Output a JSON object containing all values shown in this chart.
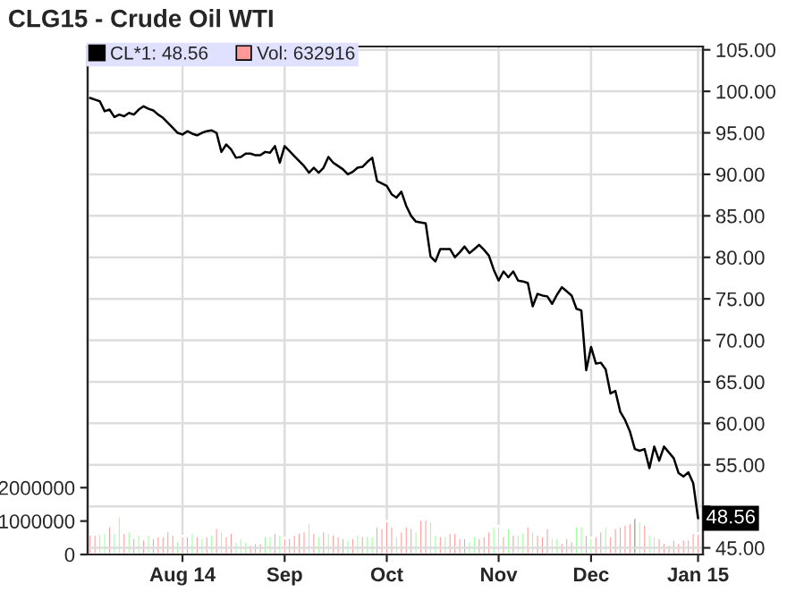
{
  "chart_data": {
    "type": "line",
    "title": "CLG15 - Crude Oil WTI",
    "categories": [
      null,
      null,
      null,
      null,
      null,
      null,
      null,
      null,
      null,
      null,
      null,
      null,
      null,
      null,
      null,
      null,
      null,
      null,
      null,
      "Aug 14",
      null,
      null,
      null,
      null,
      null,
      null,
      null,
      null,
      null,
      null,
      null,
      null,
      null,
      null,
      null,
      null,
      null,
      null,
      null,
      null,
      "Sep",
      null,
      null,
      null,
      null,
      null,
      null,
      null,
      null,
      null,
      null,
      null,
      null,
      null,
      null,
      null,
      null,
      null,
      null,
      null,
      null,
      "Oct",
      null,
      null,
      null,
      null,
      null,
      null,
      null,
      null,
      null,
      null,
      null,
      null,
      null,
      null,
      null,
      null,
      null,
      null,
      null,
      null,
      null,
      null,
      "Nov",
      null,
      null,
      null,
      null,
      null,
      null,
      null,
      null,
      null,
      null,
      null,
      null,
      null,
      null,
      null,
      null,
      null,
      null,
      "Dec",
      null,
      null,
      null,
      null,
      null,
      null,
      null,
      null,
      null,
      null,
      null,
      null,
      null,
      null,
      null,
      null,
      null,
      null,
      null,
      null,
      null,
      "Jan 15"
    ],
    "series": [
      {
        "name": "Vol: 632916",
        "type": "bar",
        "color": "#ff9999",
        "values": [
          600000,
          600000,
          620000,
          650000,
          850000,
          650000,
          1150000,
          650000,
          700000,
          500000,
          600000,
          450000,
          600000,
          500000,
          550000,
          550000,
          700000,
          600000,
          400000,
          550000,
          550000,
          650000,
          550000,
          500000,
          550000,
          600000,
          800000,
          700000,
          550000,
          650000,
          400000,
          500000,
          400000,
          300000,
          350000,
          350000,
          550000,
          550000,
          650000,
          600000,
          500000,
          500000,
          600000,
          650000,
          700000,
          950000,
          650000,
          550000,
          700000,
          650000,
          600000,
          550000,
          500000,
          450000,
          500000,
          600000,
          550000,
          550000,
          550000,
          850000,
          800000,
          1000000,
          850000,
          550000,
          700000,
          850000,
          800000,
          700000,
          1050000,
          1050000,
          1000000,
          600000,
          550000,
          550000,
          650000,
          650000,
          500000,
          500000,
          400000,
          550000,
          500000,
          550000,
          700000,
          850000,
          850000,
          550000,
          800000,
          600000,
          600000,
          650000,
          850000,
          700000,
          600000,
          550000,
          800000,
          500000,
          500000,
          350000,
          500000,
          400000,
          850000,
          850000,
          600000,
          500000,
          550000,
          700000,
          850000,
          550000,
          800000,
          850000,
          900000,
          950000,
          1100000,
          1000000,
          900000,
          600000,
          550000,
          500000,
          350000,
          300000,
          450000,
          350000,
          450000,
          450000,
          650000,
          632916
        ],
        "colors": [
          "#ff9999",
          "#ff9999",
          "#99ff99",
          "#99ff99",
          "#ff9999",
          "#99ff99",
          "#99ff99",
          "#ff9999",
          "#99ff99",
          "#ff9999",
          "#99ff99",
          "#ff9999",
          "#99ff99",
          "#ff9999",
          "#ff9999",
          "#ff9999",
          "#ff9999",
          "#ff9999",
          "#99ff99",
          "#ff9999",
          "#ff9999",
          "#99ff99",
          "#ff9999",
          "#99ff99",
          "#ff9999",
          "#99ff99",
          "#ff9999",
          "#99ff99",
          "#ff9999",
          "#ff9999",
          "#99ff99",
          "#99ff99",
          "#99ff99",
          "#ff9999",
          "#ff9999",
          "#ff9999",
          "#99ff99",
          "#99ff99",
          "#ff9999",
          "#99ff99",
          "#ff9999",
          "#ff9999",
          "#ff9999",
          "#ff9999",
          "#ff9999",
          "#99ff99",
          "#ff9999",
          "#99ff99",
          "#ff9999",
          "#99ff99",
          "#ff9999",
          "#ff9999",
          "#ff9999",
          "#99ff99",
          "#ff9999",
          "#99ff99",
          "#ff9999",
          "#99ff99",
          "#99ff99",
          "#ff9999",
          "#ff9999",
          "#ff9999",
          "#ff9999",
          "#99ff99",
          "#ff9999",
          "#ff9999",
          "#ff9999",
          "#99ff99",
          "#ff9999",
          "#ff9999",
          "#99ff99",
          "#99ff99",
          "#ff9999",
          "#99ff99",
          "#ff9999",
          "#ff9999",
          "#ff9999",
          "#ff9999",
          "#99ff99",
          "#99ff99",
          "#ff9999",
          "#ff9999",
          "#ff9999",
          "#99ff99",
          "#99ff99",
          "#ff9999",
          "#99ff99",
          "#ff9999",
          "#99ff99",
          "#99ff99",
          "#ff9999",
          "#99ff99",
          "#ff9999",
          "#ff9999",
          "#ff9999",
          "#99ff99",
          "#99ff99",
          "#ff9999",
          "#ff9999",
          "#ff9999",
          "#99ff99",
          "#99ff99",
          "#ff9999",
          "#99ff99",
          "#ff9999",
          "#ff9999",
          "#99ff99",
          "#ff9999",
          "#ff9999",
          "#ff9999",
          "#ff9999",
          "#ff9999",
          "#808080",
          "#99ff99",
          "#ff9999",
          "#99ff99",
          "#99ff99",
          "#ff9999",
          "#ff9999",
          "#ff9999",
          "#ff9999",
          "#ff9999",
          "#ff9999",
          "#ff9999",
          "#ff9999",
          "#ff9999"
        ]
      },
      {
        "name": "CL*1: 48.56",
        "axis": "y2",
        "color": "#000000",
        "values": [
          99.2,
          99.0,
          98.8,
          97.6,
          97.8,
          96.9,
          97.2,
          97.0,
          97.4,
          97.2,
          97.8,
          98.2,
          97.9,
          97.7,
          97.2,
          96.8,
          96.2,
          95.6,
          95.0,
          94.8,
          95.2,
          94.9,
          94.7,
          95.0,
          95.2,
          95.3,
          95.0,
          92.7,
          93.6,
          93.0,
          92.0,
          92.1,
          92.5,
          92.5,
          92.3,
          92.3,
          92.7,
          92.6,
          93.4,
          91.4,
          93.4,
          92.8,
          92.2,
          91.6,
          91.0,
          90.2,
          90.8,
          90.2,
          90.8,
          92.1,
          91.4,
          91.0,
          90.6,
          90.0,
          90.3,
          90.8,
          90.9,
          91.5,
          92.0,
          89.2,
          88.9,
          88.6,
          87.6,
          87.2,
          87.9,
          86.2,
          85.0,
          84.3,
          84.2,
          84.1,
          80.1,
          79.5,
          81.0,
          81.0,
          81.0,
          80.0,
          80.6,
          81.3,
          80.5,
          81.0,
          81.5,
          80.9,
          80.2,
          78.5,
          77.2,
          78.3,
          77.6,
          78.3,
          77.2,
          77.1,
          76.9,
          74.1,
          75.6,
          75.4,
          75.3,
          74.4,
          75.5,
          76.4,
          75.9,
          75.4,
          73.8,
          73.6,
          66.4,
          69.2,
          67.2,
          67.3,
          66.5,
          63.6,
          63.9,
          61.4,
          60.4,
          59.0,
          56.9,
          56.7,
          56.9,
          54.6,
          57.2,
          55.5,
          57.2,
          56.5,
          55.8,
          54.0,
          53.6,
          54.1,
          52.8,
          48.56
        ]
      }
    ],
    "ylim": [
      0,
      15200000
    ],
    "yticks": [
      0,
      1000000,
      2000000
    ],
    "y2lim": [
      44.2,
      105.4
    ],
    "y2ticks": [
      {
        "value": 45,
        "label": "45.00"
      },
      {
        "value": 50,
        "label": null
      },
      {
        "value": 55,
        "label": "55.00"
      },
      {
        "value": 60,
        "label": "60.00"
      },
      {
        "value": 65,
        "label": "65.00"
      },
      {
        "value": 70,
        "label": "70.00"
      },
      {
        "value": 75,
        "label": "75.00"
      },
      {
        "value": 80,
        "label": "80.00"
      },
      {
        "value": 85,
        "label": "85.00"
      },
      {
        "value": 90,
        "label": "90.00"
      },
      {
        "value": 95,
        "label": "95.00"
      },
      {
        "value": 100,
        "label": "100.00"
      },
      {
        "value": 105,
        "label": "105.00"
      }
    ],
    "annotations": [
      "48.56"
    ],
    "grid": true,
    "legend": "top"
  }
}
